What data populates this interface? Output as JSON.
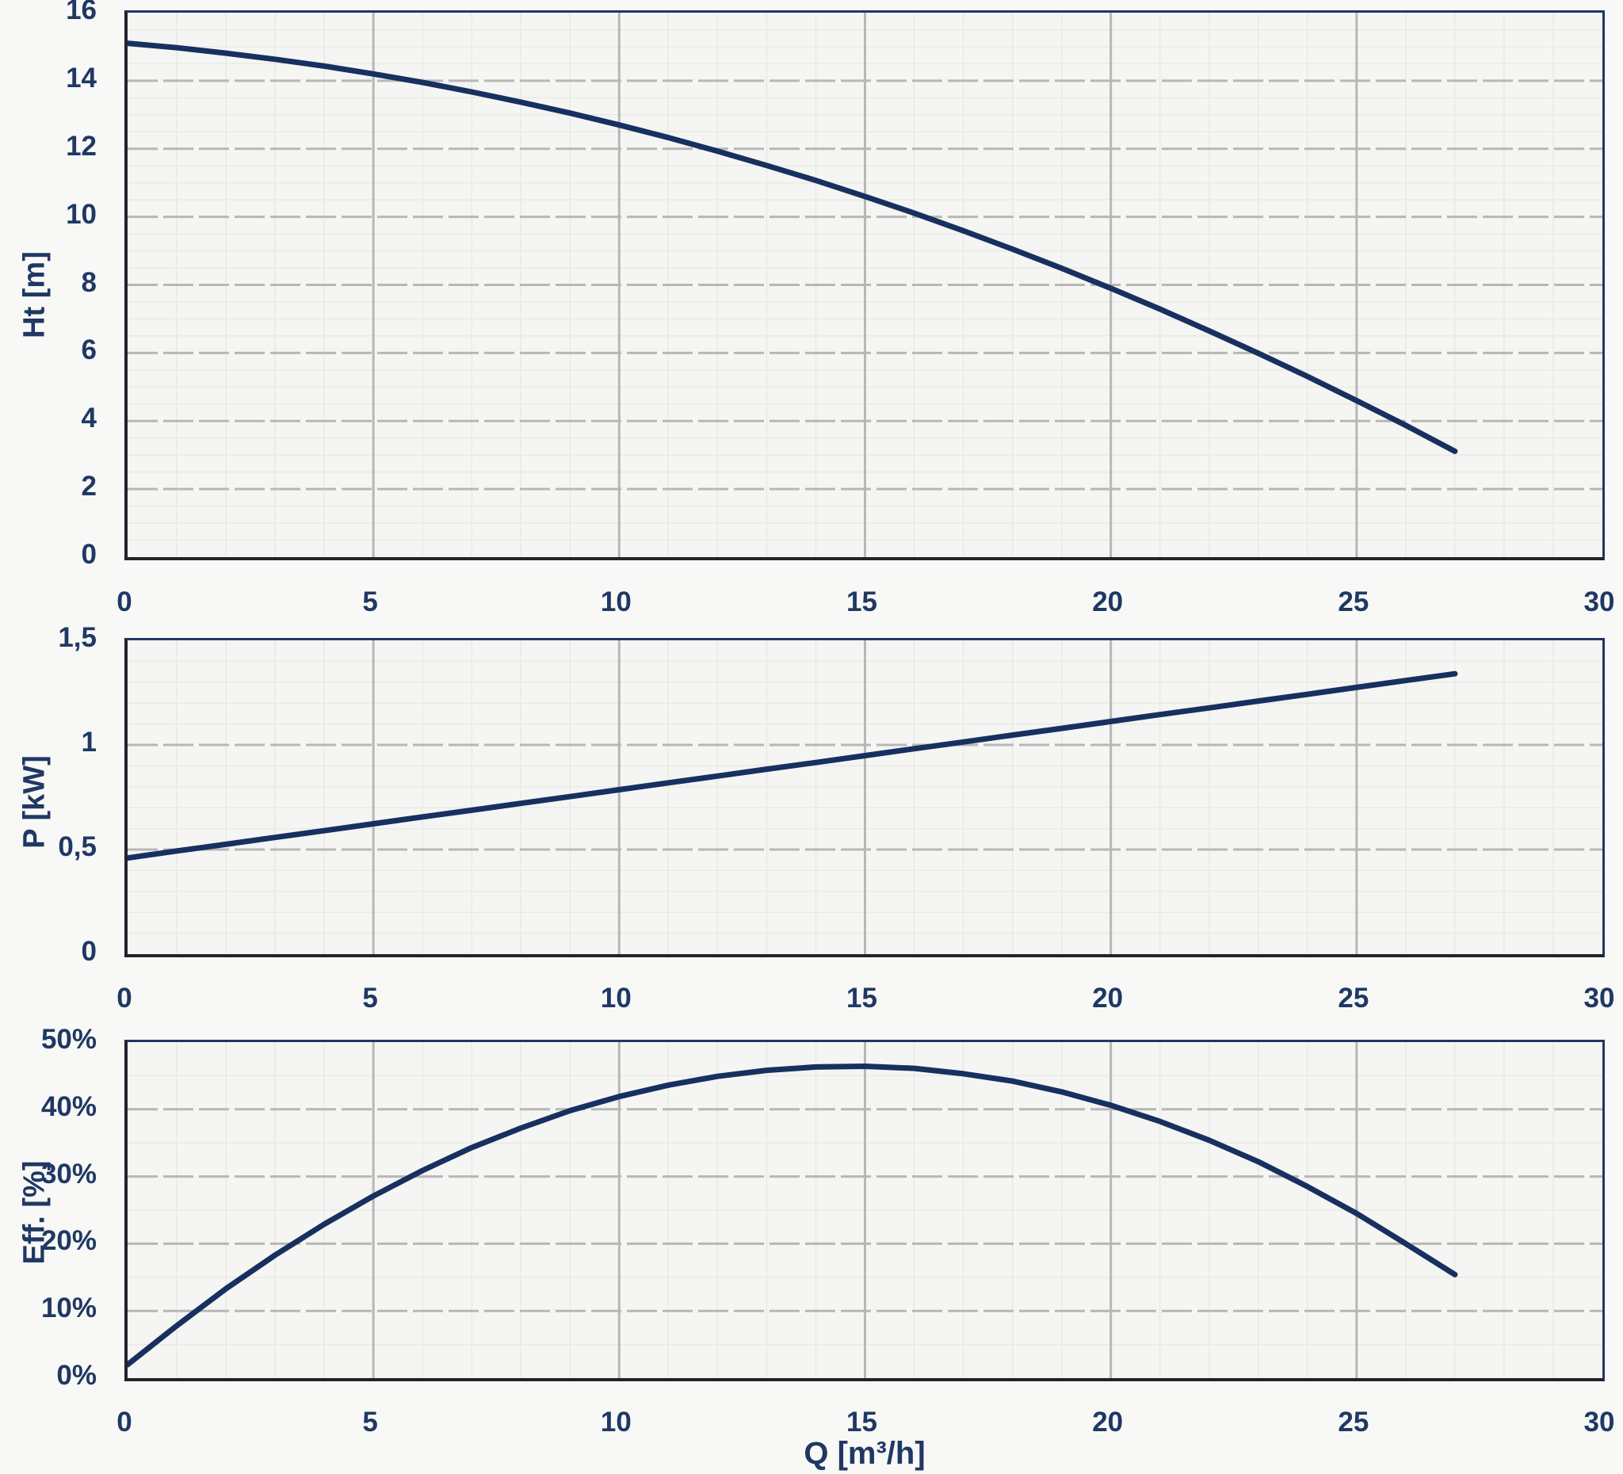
{
  "page": {
    "background": "#f8f8f6",
    "plot_background": "#f5f5f3"
  },
  "colors": {
    "curve": "#17305f",
    "label_text": "#1f3864",
    "grid_major": "#b7b7b5",
    "grid_minor": "#e9e9e6",
    "plot_border": "#1f3864",
    "axis_line": "#23232a"
  },
  "x_axis": {
    "title": "Q [m³/h]",
    "tick_values": [
      0,
      5,
      10,
      15,
      20,
      25,
      30
    ],
    "tick_labels": [
      "0",
      "5",
      "10",
      "15",
      "20",
      "25",
      "30"
    ],
    "lim": [
      0,
      30
    ],
    "minor_step": 1
  },
  "chart_data": [
    {
      "type": "line",
      "name": "head-curve",
      "y_axis_label": "Ht [m]",
      "x_axis_label": "Q [m³/h]",
      "ylim": [
        0,
        16
      ],
      "xlim": [
        0,
        30
      ],
      "y_tick_values": [
        16,
        14,
        12,
        10,
        8,
        6,
        4,
        2,
        0
      ],
      "y_tick_labels": [
        "16",
        "14",
        "12",
        "10",
        "8",
        "6",
        "4",
        "2",
        "0"
      ],
      "y_minor_step": 0.5,
      "x_minor_step": 1,
      "x": [
        0,
        1,
        2,
        3,
        4,
        5,
        6,
        7,
        8,
        9,
        10,
        11,
        12,
        13,
        14,
        15,
        16,
        17,
        18,
        19,
        20,
        21,
        22,
        23,
        24,
        25,
        26,
        27
      ],
      "y": [
        15.1,
        14.97,
        14.81,
        14.63,
        14.43,
        14.2,
        13.95,
        13.67,
        13.37,
        13.05,
        12.7,
        12.33,
        11.93,
        11.51,
        11.07,
        10.6,
        10.11,
        9.59,
        9.05,
        8.49,
        7.9,
        7.29,
        6.65,
        5.99,
        5.31,
        4.6,
        3.87,
        3.11
      ]
    },
    {
      "type": "line",
      "name": "power-curve",
      "y_axis_label": "P [kW]",
      "x_axis_label": "Q [m³/h]",
      "ylim": [
        0,
        1.5
      ],
      "xlim": [
        0,
        30
      ],
      "y_tick_values": [
        1.5,
        1,
        0.5,
        0
      ],
      "y_tick_labels": [
        "1,5",
        "1",
        "0,5",
        "0"
      ],
      "y_minor_step": 0.1,
      "x_minor_step": 1,
      "x": [
        0,
        1,
        2,
        3,
        4,
        5,
        6,
        7,
        8,
        9,
        10,
        11,
        12,
        13,
        14,
        15,
        16,
        17,
        18,
        19,
        20,
        21,
        22,
        23,
        24,
        25,
        26,
        27
      ],
      "y": [
        0.46,
        0.493,
        0.525,
        0.558,
        0.59,
        0.623,
        0.656,
        0.688,
        0.721,
        0.753,
        0.786,
        0.819,
        0.851,
        0.884,
        0.916,
        0.949,
        0.982,
        1.014,
        1.047,
        1.079,
        1.112,
        1.145,
        1.177,
        1.21,
        1.242,
        1.275,
        1.308,
        1.34
      ]
    },
    {
      "type": "line",
      "name": "efficiency-curve",
      "y_axis_label": "Eff. [%]",
      "x_axis_label": "Q [m³/h]",
      "ylim": [
        0,
        50
      ],
      "xlim": [
        0,
        30
      ],
      "y_tick_values": [
        50,
        40,
        30,
        20,
        10,
        0
      ],
      "y_tick_labels": [
        "50%",
        "40%",
        "30%",
        "20%",
        "10%",
        "0%"
      ],
      "y_minor_step": 5,
      "x_minor_step": 1,
      "x": [
        0,
        1,
        2,
        3,
        4,
        5,
        6,
        7,
        8,
        9,
        10,
        11,
        12,
        13,
        14,
        15,
        16,
        17,
        18,
        19,
        20,
        21,
        22,
        23,
        24,
        25,
        26,
        27
      ],
      "y": [
        2,
        7.8,
        13.3,
        18.3,
        22.9,
        27.1,
        30.9,
        34.3,
        37.2,
        39.8,
        41.9,
        43.6,
        44.9,
        45.8,
        46.3,
        46.4,
        46.1,
        45.3,
        44.2,
        42.6,
        40.6,
        38.2,
        35.4,
        32.2,
        28.5,
        24.5,
        20,
        15.4
      ]
    }
  ]
}
